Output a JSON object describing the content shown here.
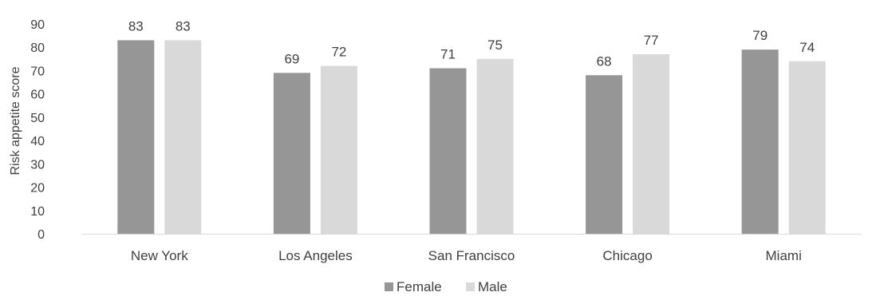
{
  "chart_data": {
    "type": "bar",
    "categories": [
      "New York",
      "Los Angeles",
      "San Francisco",
      "Chicago",
      "Miami"
    ],
    "series": [
      {
        "name": "Female",
        "values": [
          83,
          69,
          71,
          68,
          79
        ],
        "color": "#969696"
      },
      {
        "name": "Male",
        "values": [
          83,
          72,
          75,
          77,
          74
        ],
        "color": "#d9d9d9"
      }
    ],
    "data_labels": [
      [
        "83",
        "69",
        "71",
        "68",
        "79"
      ],
      [
        "83",
        "72",
        "75",
        "77",
        "74"
      ]
    ],
    "yticks": [
      "0",
      "10",
      "20",
      "30",
      "40",
      "50",
      "60",
      "70",
      "80",
      "90"
    ],
    "ylabel": "Risk appetite score",
    "xlabel": "",
    "title": "",
    "ylim": [
      0,
      90
    ],
    "grid": false,
    "legend_position": "bottom",
    "axis_color": "#d9d9d9"
  }
}
